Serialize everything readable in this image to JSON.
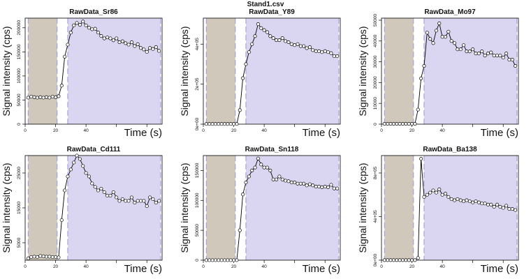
{
  "figure": {
    "title": "Stand1.csv"
  },
  "colors": {
    "background_region": "#d0c8bb",
    "signal_region": "#dad6f1",
    "boundary_line": "#a9a2d9",
    "data_line": "#000000",
    "marker_fill": "#ffffff"
  },
  "chart_data": [
    {
      "type": "line",
      "title": "RawData_Sr86",
      "xlabel": "Time (s)",
      "ylabel": "Signal intensity (cps)",
      "xlim": [
        0,
        90
      ],
      "ylim": [
        0,
        220000
      ],
      "x_ticks": [
        0,
        20,
        40,
        60,
        80
      ],
      "x_tick_labels": [
        "0",
        "20",
        "40",
        "",
        ""
      ],
      "y_ticks": [
        0,
        50000,
        100000,
        150000,
        200000
      ],
      "y_tick_labels": [
        "0",
        "50000",
        "100000",
        "150000",
        "200000"
      ],
      "background_window": [
        2,
        21
      ],
      "signal_window": [
        28,
        89
      ],
      "x": [
        2,
        4,
        6,
        8,
        10,
        12,
        14,
        16,
        18,
        20,
        22,
        24,
        26,
        28,
        30,
        32,
        34,
        36,
        38,
        40,
        42,
        44,
        46,
        48,
        50,
        52,
        54,
        56,
        58,
        60,
        62,
        64,
        66,
        68,
        70,
        72,
        74,
        76,
        78,
        80,
        82,
        84,
        86,
        88
      ],
      "y": [
        55000,
        57000,
        56000,
        55000,
        56000,
        55000,
        56000,
        55000,
        57000,
        56000,
        58000,
        80000,
        140000,
        165000,
        190000,
        205000,
        210000,
        206000,
        213000,
        205000,
        200000,
        197000,
        198000,
        190000,
        183000,
        178000,
        180000,
        178000,
        174000,
        178000,
        170000,
        172000,
        168000,
        165000,
        170000,
        162000,
        166000,
        158000,
        155000,
        150000,
        158000,
        156000,
        160000,
        152000
      ]
    },
    {
      "type": "line",
      "title": "RawData_Y89",
      "xlabel": "Time (s)",
      "ylabel": "Signal intensity (cps)",
      "xlim": [
        0,
        90
      ],
      "ylim": [
        0,
        530000
      ],
      "x_ticks": [
        0,
        20,
        40,
        60,
        80
      ],
      "x_tick_labels": [
        "0",
        "20",
        "40",
        "",
        ""
      ],
      "y_ticks": [
        0,
        200000,
        400000
      ],
      "y_tick_labels": [
        "0e+00",
        "2e+05",
        "4e+05"
      ],
      "background_window": [
        2,
        21
      ],
      "signal_window": [
        28,
        89
      ],
      "x": [
        2,
        4,
        6,
        8,
        10,
        12,
        14,
        16,
        18,
        20,
        22,
        24,
        26,
        28,
        30,
        32,
        34,
        36,
        38,
        40,
        42,
        44,
        46,
        48,
        50,
        52,
        54,
        56,
        58,
        60,
        62,
        64,
        66,
        68,
        70,
        72,
        74,
        76,
        78,
        80,
        82,
        84,
        86,
        88
      ],
      "y": [
        1000,
        1000,
        1000,
        1000,
        1000,
        1000,
        1000,
        1000,
        1000,
        1000,
        1000,
        70000,
        230000,
        300000,
        360000,
        400000,
        440000,
        500000,
        480000,
        470000,
        460000,
        440000,
        430000,
        420000,
        420000,
        430000,
        415000,
        410000,
        400000,
        395000,
        400000,
        390000,
        390000,
        380000,
        385000,
        370000,
        365000,
        365000,
        360000,
        365000,
        360000,
        355000,
        340000,
        340000
      ]
    },
    {
      "type": "line",
      "title": "RawData_Mo97",
      "xlabel": "Time (s)",
      "ylabel": "Signal intensity (cps)",
      "xlim": [
        0,
        90
      ],
      "ylim": [
        0,
        51000
      ],
      "x_ticks": [
        0,
        20,
        40,
        60,
        80
      ],
      "x_tick_labels": [
        "0",
        "20",
        "40",
        "",
        ""
      ],
      "y_ticks": [
        0,
        10000,
        20000,
        30000,
        40000,
        50000
      ],
      "y_tick_labels": [
        "0",
        "10000",
        "20000",
        "30000",
        "40000",
        "50000"
      ],
      "background_window": [
        2,
        21
      ],
      "signal_window": [
        28,
        89
      ],
      "x": [
        2,
        4,
        6,
        8,
        10,
        12,
        14,
        16,
        18,
        20,
        22,
        24,
        26,
        28,
        30,
        32,
        34,
        36,
        38,
        40,
        42,
        44,
        46,
        48,
        50,
        52,
        54,
        56,
        58,
        60,
        62,
        64,
        66,
        68,
        70,
        72,
        74,
        76,
        78,
        80,
        82,
        84,
        86,
        88
      ],
      "y": [
        150,
        150,
        150,
        150,
        150,
        150,
        150,
        150,
        150,
        150,
        150,
        7000,
        22000,
        28000,
        44000,
        41000,
        39000,
        45000,
        48500,
        42000,
        42000,
        44500,
        40000,
        39000,
        36000,
        36000,
        38000,
        35000,
        35000,
        36000,
        34000,
        34000,
        35000,
        33000,
        34000,
        34500,
        33000,
        33000,
        33000,
        32000,
        34000,
        31000,
        31000,
        28000
      ]
    },
    {
      "type": "line",
      "title": "RawData_Cd111",
      "xlabel": "Time (s)",
      "ylabel": "Signal intensity (cps)",
      "xlim": [
        0,
        90
      ],
      "ylim": [
        0,
        30000
      ],
      "x_ticks": [
        0,
        20,
        40,
        60,
        80
      ],
      "x_tick_labels": [
        "0",
        "20",
        "40",
        "",
        ""
      ],
      "y_ticks": [
        5000,
        15000,
        25000
      ],
      "y_tick_labels": [
        "5000",
        "15000",
        "25000"
      ],
      "background_window": [
        2,
        21
      ],
      "signal_window": [
        28,
        89
      ],
      "x": [
        2,
        4,
        6,
        8,
        10,
        12,
        14,
        16,
        18,
        20,
        22,
        24,
        26,
        28,
        30,
        32,
        34,
        36,
        38,
        40,
        42,
        44,
        46,
        48,
        50,
        52,
        54,
        56,
        58,
        60,
        62,
        64,
        66,
        68,
        70,
        72,
        74,
        76,
        78,
        80,
        82,
        84,
        86,
        88
      ],
      "y": [
        500,
        900,
        1000,
        900,
        1200,
        1100,
        1000,
        1000,
        900,
        900,
        800,
        11500,
        20000,
        24000,
        26000,
        28000,
        30000,
        29000,
        27000,
        25000,
        24000,
        22000,
        21000,
        20000,
        20500,
        19500,
        18500,
        18500,
        19500,
        18000,
        17000,
        17500,
        17000,
        17000,
        18000,
        16500,
        17000,
        17000,
        17000,
        15500,
        18000,
        17500,
        16500,
        17000
      ]
    },
    {
      "type": "line",
      "title": "RawData_Sn118",
      "xlabel": "Time (s)",
      "ylabel": "Signal intensity (cps)",
      "xlim": [
        0,
        90
      ],
      "ylim": [
        0,
        175000
      ],
      "x_ticks": [
        0,
        20,
        40,
        60,
        80
      ],
      "x_tick_labels": [
        "0",
        "20",
        "40",
        "",
        ""
      ],
      "y_ticks": [
        0,
        50000,
        100000,
        150000
      ],
      "y_tick_labels": [
        "0",
        "50000",
        "100000",
        "150000"
      ],
      "background_window": [
        2,
        21
      ],
      "signal_window": [
        28,
        89
      ],
      "x": [
        2,
        4,
        6,
        8,
        10,
        12,
        14,
        16,
        18,
        20,
        22,
        24,
        26,
        28,
        30,
        32,
        34,
        36,
        38,
        40,
        42,
        44,
        46,
        48,
        50,
        52,
        54,
        56,
        58,
        60,
        62,
        64,
        66,
        68,
        70,
        72,
        74,
        76,
        78,
        80,
        82,
        84,
        86,
        88
      ],
      "y": [
        0,
        0,
        0,
        0,
        0,
        0,
        0,
        0,
        0,
        0,
        0,
        50000,
        110000,
        130000,
        140000,
        150000,
        155000,
        170000,
        160000,
        155000,
        155000,
        150000,
        135000,
        135000,
        140000,
        135000,
        133000,
        132000,
        130000,
        130000,
        128000,
        128000,
        128000,
        125000,
        127000,
        125000,
        123000,
        123000,
        122000,
        123000,
        122000,
        126000,
        120000,
        120000
      ]
    },
    {
      "type": "line",
      "title": "RawData_Ba138",
      "xlabel": "Time (s)",
      "ylabel": "Signal intensity (cps)",
      "xlim": [
        0,
        90
      ],
      "ylim": [
        0,
        960000
      ],
      "x_ticks": [
        0,
        20,
        40,
        60,
        80
      ],
      "x_tick_labels": [
        "0",
        "20",
        "40",
        "",
        ""
      ],
      "y_ticks": [
        0,
        400000,
        800000
      ],
      "y_tick_labels": [
        "0e+00",
        "4e+05",
        "8e+05"
      ],
      "background_window": [
        2,
        21
      ],
      "signal_window": [
        28,
        89
      ],
      "x": [
        2,
        4,
        6,
        8,
        10,
        12,
        14,
        16,
        18,
        20,
        22,
        24,
        26,
        28,
        30,
        32,
        34,
        36,
        38,
        40,
        42,
        44,
        46,
        48,
        50,
        52,
        54,
        56,
        58,
        60,
        62,
        64,
        66,
        68,
        70,
        72,
        74,
        76,
        78,
        80,
        82,
        84,
        86,
        88
      ],
      "y": [
        500,
        500,
        500,
        500,
        500,
        500,
        500,
        500,
        500,
        500,
        500,
        20000,
        930000,
        580000,
        600000,
        620000,
        640000,
        620000,
        650000,
        600000,
        610000,
        580000,
        560000,
        550000,
        560000,
        550000,
        540000,
        550000,
        540000,
        530000,
        540000,
        530000,
        520000,
        520000,
        510000,
        510000,
        490000,
        510000,
        490000,
        480000,
        500000,
        470000,
        470000,
        460000
      ]
    }
  ]
}
